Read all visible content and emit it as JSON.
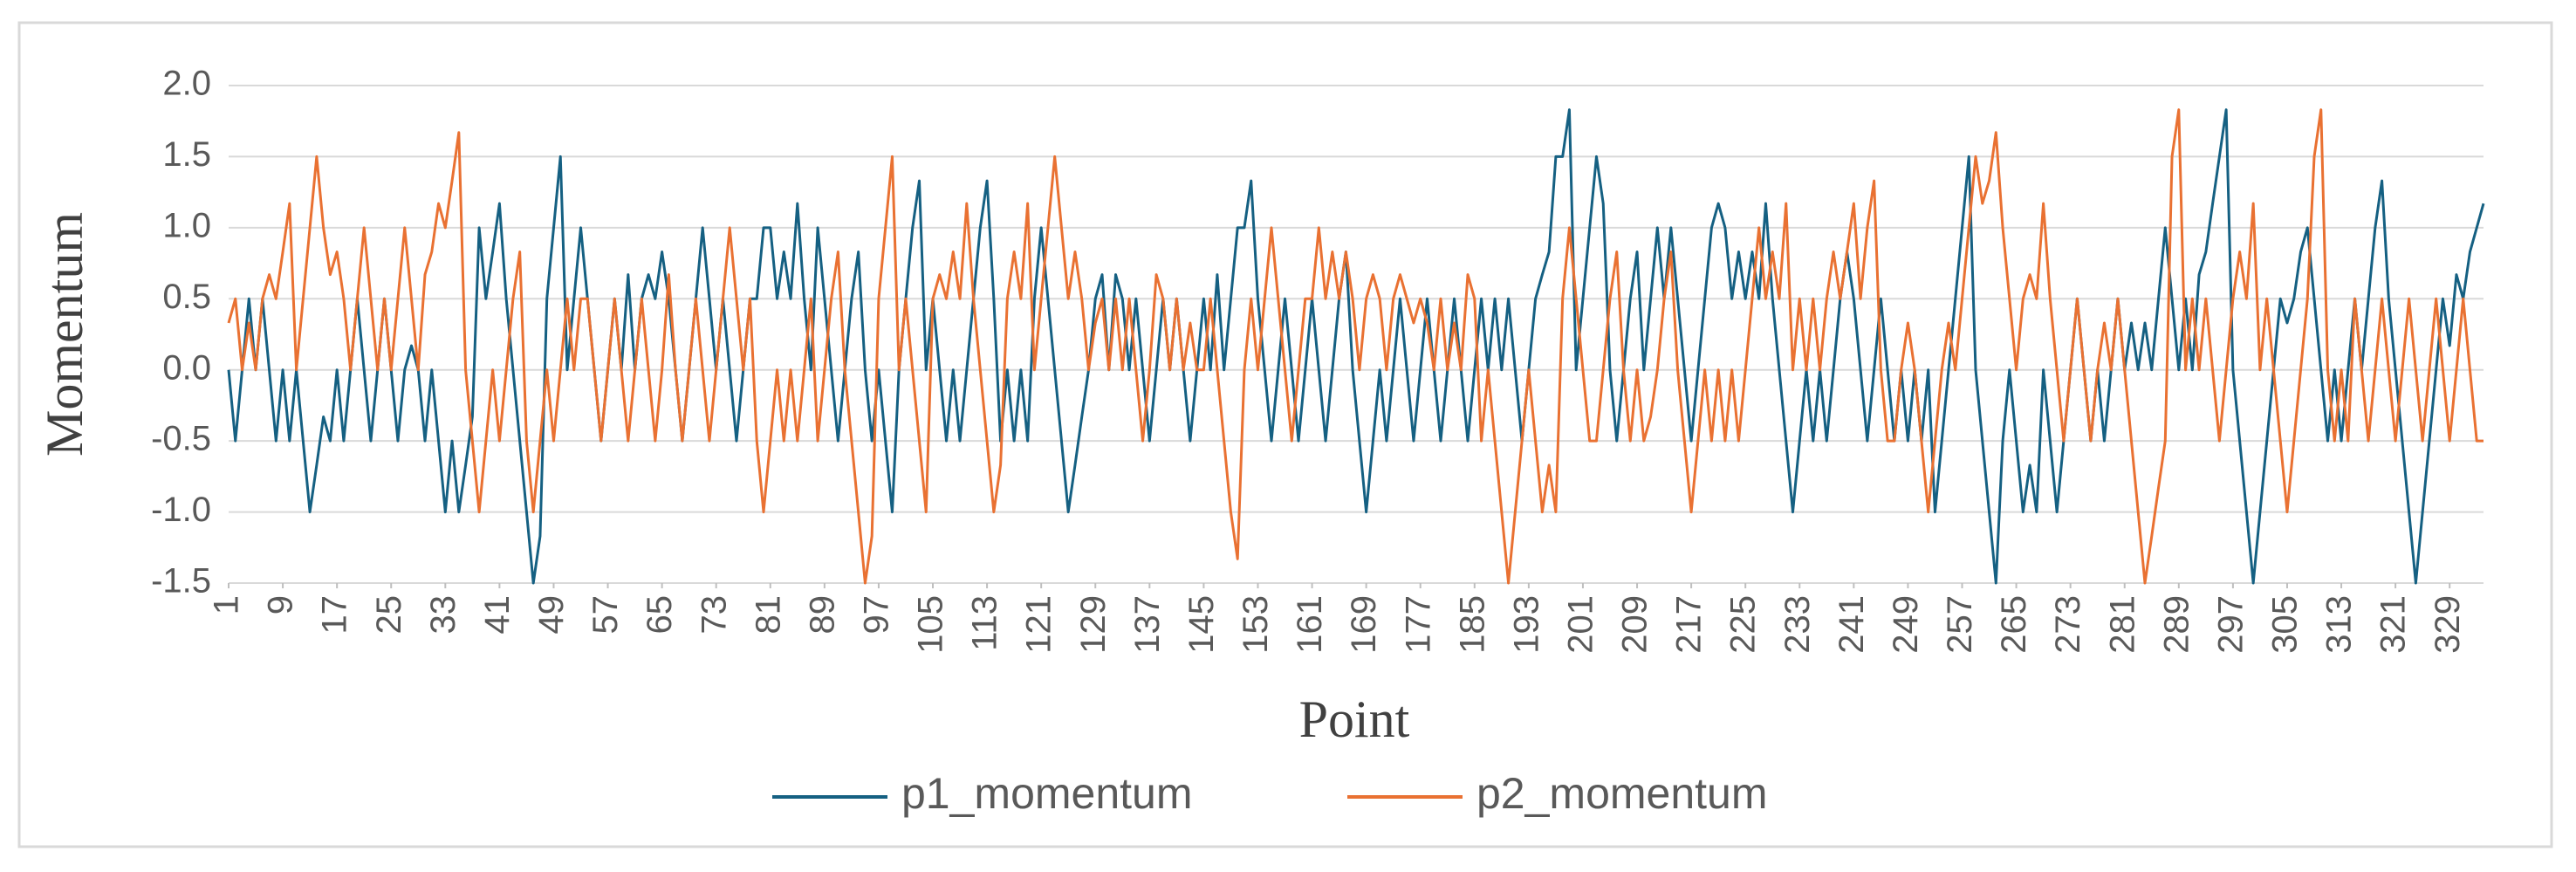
{
  "chart_data": {
    "type": "line",
    "x_label": "Point",
    "y_label": "Momentum",
    "x": [
      1,
      2,
      3,
      4,
      5,
      6,
      7,
      8,
      9,
      10,
      11,
      12,
      13,
      14,
      15,
      16,
      17,
      18,
      19,
      20,
      21,
      22,
      23,
      24,
      25,
      26,
      27,
      28,
      29,
      30,
      31,
      32,
      33,
      34,
      35,
      36,
      37,
      38,
      39,
      40,
      41,
      42,
      43,
      44,
      45,
      46,
      47,
      48,
      49,
      50,
      51,
      52,
      53,
      54,
      55,
      56,
      57,
      58,
      59,
      60,
      61,
      62,
      63,
      64,
      65,
      66,
      67,
      68,
      69,
      70,
      71,
      72,
      73,
      74,
      75,
      76,
      77,
      78,
      79,
      80,
      81,
      82,
      83,
      84,
      85,
      86,
      87,
      88,
      89,
      90,
      91,
      92,
      93,
      94,
      95,
      96,
      97,
      98,
      99,
      100,
      101,
      102,
      103,
      104,
      105,
      106,
      107,
      108,
      109,
      110,
      111,
      112,
      113,
      114,
      115,
      116,
      117,
      118,
      119,
      120,
      121,
      122,
      123,
      124,
      125,
      126,
      127,
      128,
      129,
      130,
      131,
      132,
      133,
      134,
      135,
      136,
      137,
      138,
      139,
      140,
      141,
      142,
      143,
      144,
      145,
      146,
      147,
      148,
      149,
      150,
      151,
      152,
      153,
      154,
      155,
      156,
      157,
      158,
      159,
      160,
      161,
      162,
      163,
      164,
      165,
      166,
      167,
      168,
      169,
      170,
      171,
      172,
      173,
      174,
      175,
      176,
      177,
      178,
      179,
      180,
      181,
      182,
      183,
      184,
      185,
      186,
      187,
      188,
      189,
      190,
      191,
      192,
      193,
      194,
      195,
      196,
      197,
      198,
      199,
      200,
      201,
      202,
      203,
      204,
      205,
      206,
      207,
      208,
      209,
      210,
      211,
      212,
      213,
      214,
      215,
      216,
      217,
      218,
      219,
      220,
      221,
      222,
      223,
      224,
      225,
      226,
      227,
      228,
      229,
      230,
      231,
      232,
      233,
      234,
      235,
      236,
      237,
      238,
      239,
      240,
      241,
      242,
      243,
      244,
      245,
      246,
      247,
      248,
      249,
      250,
      251,
      252,
      253,
      254,
      255,
      256,
      257,
      258,
      259,
      260,
      261,
      262,
      263,
      264,
      265,
      266,
      267,
      268,
      269,
      270,
      271,
      272,
      273,
      274,
      275,
      276,
      277,
      278,
      279,
      280,
      281,
      282,
      283,
      284,
      285,
      286,
      287,
      288,
      289,
      290,
      291,
      292,
      293,
      294,
      295,
      296,
      297,
      298,
      299,
      300,
      301,
      302,
      303,
      304,
      305,
      306,
      307,
      308,
      309,
      310,
      311,
      312,
      313,
      314,
      315,
      316,
      317,
      318,
      319,
      320,
      321,
      322,
      323,
      324,
      325,
      326,
      327,
      328,
      329,
      330,
      331,
      332,
      333,
      334
    ],
    "series": [
      {
        "name": "p1_momentum",
        "color": "#156082",
        "values": [
          0,
          -0.5,
          0,
          0.5,
          0,
          0.5,
          0,
          -0.5,
          0,
          -0.5,
          0,
          -0.5,
          -1.0,
          -0.67,
          -0.33,
          -0.5,
          0,
          -0.5,
          0,
          0.5,
          0,
          -0.5,
          0,
          0.5,
          0,
          -0.5,
          0,
          0.17,
          0,
          -0.5,
          0,
          -0.5,
          -1.0,
          -0.5,
          -1.0,
          -0.67,
          -0.33,
          1.0,
          0.5,
          0.83,
          1.17,
          0.5,
          0,
          -0.5,
          -1.0,
          -1.5,
          -1.17,
          0.5,
          1.0,
          1.5,
          0,
          0.5,
          1.0,
          0.5,
          0,
          -0.5,
          0,
          0.5,
          0,
          0.67,
          0,
          0.5,
          0.67,
          0.5,
          0.83,
          0.5,
          0,
          -0.5,
          0,
          0.5,
          1.0,
          0.5,
          0,
          0.5,
          0,
          -0.5,
          0,
          0.5,
          0.5,
          1.0,
          1.0,
          0.5,
          0.83,
          0.5,
          1.17,
          0.5,
          0,
          1.0,
          0.5,
          0,
          -0.5,
          0,
          0.5,
          0.83,
          0,
          -0.5,
          0,
          -0.5,
          -1.0,
          0,
          0.5,
          1.0,
          1.33,
          0,
          0.5,
          0,
          -0.5,
          0,
          -0.5,
          0,
          0.5,
          1.0,
          1.33,
          0.5,
          -0.5,
          0,
          -0.5,
          0,
          -0.5,
          0.5,
          1.0,
          0.5,
          0,
          -0.5,
          -1.0,
          -0.67,
          -0.33,
          0,
          0.5,
          0.67,
          0,
          0.67,
          0.5,
          0,
          0.5,
          0,
          -0.5,
          0,
          0.5,
          0,
          0.5,
          0,
          -0.5,
          0,
          0.5,
          0,
          0.67,
          0,
          0.5,
          1.0,
          1.0,
          1.33,
          0.5,
          0,
          -0.5,
          0,
          0.5,
          0,
          -0.5,
          0,
          0.5,
          0,
          -0.5,
          0,
          0.5,
          0.83,
          0,
          -0.5,
          -1.0,
          -0.5,
          0,
          -0.5,
          0,
          0.5,
          0,
          -0.5,
          0,
          0.5,
          0,
          -0.5,
          0,
          0.5,
          0,
          -0.5,
          0,
          0.5,
          0,
          0.5,
          0,
          0.5,
          0,
          -0.5,
          0,
          0.5,
          0.67,
          0.83,
          1.5,
          1.5,
          1.83,
          0,
          0.5,
          1.0,
          1.5,
          1.17,
          0,
          -0.5,
          0,
          0.5,
          0.83,
          0,
          0.5,
          1.0,
          0.5,
          1.0,
          0.5,
          0,
          -0.5,
          0,
          0.5,
          1.0,
          1.17,
          1.0,
          0.5,
          0.83,
          0.5,
          0.83,
          0.5,
          1.17,
          0.5,
          0,
          -0.5,
          -1.0,
          -0.5,
          0,
          -0.5,
          0,
          -0.5,
          0,
          0.5,
          0.83,
          0.5,
          0,
          -0.5,
          0,
          0.5,
          0,
          -0.5,
          0,
          -0.5,
          0,
          -0.5,
          0,
          -1.0,
          -0.5,
          0,
          0.5,
          1.0,
          1.5,
          0,
          -0.5,
          -1.0,
          -1.5,
          -0.5,
          0,
          -0.5,
          -1.0,
          -0.67,
          -1.0,
          0,
          -0.5,
          -1.0,
          -0.5,
          0,
          0.5,
          0,
          -0.5,
          0,
          -0.5,
          0,
          0.5,
          0,
          0.33,
          0,
          0.33,
          0,
          0.5,
          1.0,
          0.5,
          0,
          0.5,
          0,
          0.67,
          0.83,
          1.17,
          1.5,
          1.83,
          0,
          -0.5,
          -1.0,
          -1.5,
          -1.0,
          -0.5,
          0,
          0.5,
          0.33,
          0.5,
          0.83,
          1.0,
          0.5,
          0,
          -0.5,
          0,
          -0.5,
          0,
          0.5,
          0,
          0.5,
          1.0,
          1.33,
          0.5,
          0,
          -0.5,
          -1.0,
          -1.5,
          -1.0,
          -0.5,
          0,
          0.5,
          0.17,
          0.67,
          0.5,
          0.83,
          1.0,
          1.17
        ]
      },
      {
        "name": "p2_momentum",
        "color": "#e97132",
        "values": [
          0.33,
          0.5,
          0,
          0.33,
          0,
          0.5,
          0.67,
          0.5,
          0.83,
          1.17,
          0,
          0.5,
          1.0,
          1.5,
          1.0,
          0.67,
          0.83,
          0.5,
          0,
          0.5,
          1.0,
          0.5,
          0,
          0.5,
          0,
          0.5,
          1.0,
          0.5,
          0,
          0.67,
          0.83,
          1.17,
          1.0,
          1.33,
          1.67,
          0,
          -0.5,
          -1.0,
          -0.5,
          0,
          -0.5,
          0,
          0.5,
          0.83,
          -0.5,
          -1.0,
          -0.5,
          0,
          -0.5,
          0,
          0.5,
          0,
          0.5,
          0.5,
          0,
          -0.5,
          0,
          0.5,
          0,
          -0.5,
          0,
          0.5,
          0,
          -0.5,
          0,
          0.67,
          0,
          -0.5,
          0,
          0.5,
          0,
          -0.5,
          0,
          0.5,
          1.0,
          0.5,
          0,
          0.5,
          -0.5,
          -1.0,
          -0.5,
          0,
          -0.5,
          0,
          -0.5,
          0,
          0.5,
          -0.5,
          0,
          0.5,
          0.83,
          0,
          -0.5,
          -1.0,
          -1.5,
          -1.17,
          0.5,
          1.0,
          1.5,
          0,
          0.5,
          0,
          -0.5,
          -1.0,
          0.5,
          0.67,
          0.5,
          0.83,
          0.5,
          1.17,
          0.5,
          0,
          -0.5,
          -1.0,
          -0.67,
          0.5,
          0.83,
          0.5,
          1.17,
          0,
          0.5,
          1.0,
          1.5,
          1.0,
          0.5,
          0.83,
          0.5,
          0,
          0.33,
          0.5,
          0,
          0.5,
          0,
          0.5,
          0,
          -0.5,
          0,
          0.67,
          0.5,
          0,
          0.5,
          0,
          0.33,
          0,
          0,
          0.5,
          0,
          -0.5,
          -1.0,
          -1.33,
          0,
          0.5,
          0,
          0.5,
          1.0,
          0.5,
          0,
          -0.5,
          0,
          0.5,
          0.5,
          1.0,
          0.5,
          0.83,
          0.5,
          0.83,
          0.5,
          0,
          0.5,
          0.67,
          0.5,
          0,
          0.5,
          0.67,
          0.5,
          0.33,
          0.5,
          0.33,
          0,
          0.5,
          0,
          0.33,
          0,
          0.67,
          0.5,
          -0.5,
          0,
          -0.5,
          -1.0,
          -1.5,
          -1.0,
          -0.5,
          0,
          -0.5,
          -1.0,
          -0.67,
          -1.0,
          0.5,
          1.0,
          0.5,
          0,
          -0.5,
          -0.5,
          0,
          0.5,
          0.83,
          0,
          -0.5,
          0,
          -0.5,
          -0.33,
          0,
          0.5,
          0.83,
          0,
          -0.5,
          -1.0,
          -0.5,
          0,
          -0.5,
          0,
          -0.5,
          0,
          -0.5,
          0,
          0.5,
          1.0,
          0.5,
          0.83,
          0.5,
          1.17,
          0,
          0.5,
          0,
          0.5,
          0,
          0.5,
          0.83,
          0.5,
          0.83,
          1.17,
          0.5,
          1.0,
          1.33,
          0,
          -0.5,
          -0.5,
          0,
          0.33,
          0,
          -0.5,
          -1.0,
          -0.5,
          0,
          0.33,
          0,
          0.5,
          1.0,
          1.5,
          1.17,
          1.33,
          1.67,
          1.0,
          0.5,
          0,
          0.5,
          0.67,
          0.5,
          1.17,
          0.5,
          0,
          -0.5,
          0,
          0.5,
          0,
          -0.5,
          0,
          0.33,
          0,
          0.5,
          0,
          -0.5,
          -1.0,
          -1.5,
          -1.17,
          -0.83,
          -0.5,
          1.5,
          1.83,
          0,
          0.5,
          0,
          0.5,
          0,
          -0.5,
          0,
          0.5,
          0.83,
          0.5,
          1.17,
          0,
          0.5,
          0,
          -0.5,
          -1.0,
          -0.5,
          0,
          0.5,
          1.5,
          1.83,
          0,
          -0.5,
          0,
          -0.5,
          0.5,
          0,
          -0.5,
          0,
          0.5,
          0,
          -0.5,
          0,
          0.5,
          0,
          -0.5,
          0,
          0.5,
          0,
          -0.5,
          0,
          0.5,
          0,
          -0.5,
          -0.5
        ]
      }
    ],
    "xlim": [
      1,
      334
    ],
    "xticks": [
      1,
      9,
      17,
      25,
      33,
      41,
      49,
      57,
      65,
      73,
      81,
      89,
      97,
      105,
      113,
      121,
      129,
      137,
      145,
      153,
      161,
      169,
      177,
      185,
      193,
      201,
      209,
      217,
      225,
      233,
      241,
      249,
      257,
      265,
      273,
      281,
      289,
      297,
      305,
      313,
      321,
      329
    ],
    "ylim": [
      -1.5,
      2.0
    ],
    "yticks": [
      -1.5,
      {
        "value": -1.0,
        "label": "-1.0"
      },
      -0.5,
      {
        "value": 0,
        "label": "0.0"
      },
      0.5,
      {
        "value": 1.0,
        "label": "1.0"
      },
      1.5,
      {
        "value": 2.0,
        "label": "2.0"
      }
    ],
    "grid": true,
    "legend": "bottom"
  }
}
